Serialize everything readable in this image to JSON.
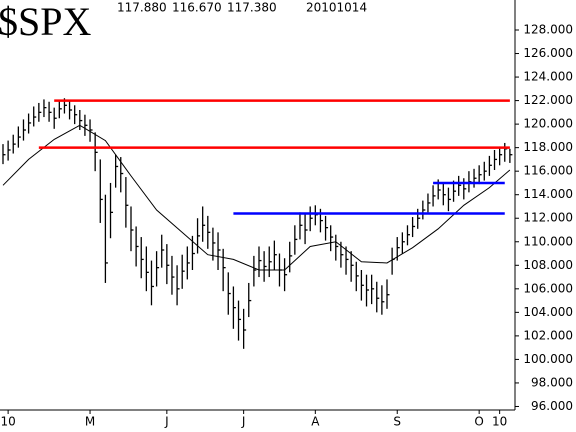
{
  "chart_data": {
    "type": "ohlc",
    "title": "$SPX",
    "header_values": [
      "117.880",
      "116.670",
      "117.380"
    ],
    "date": "20101014",
    "categories": [
      null,
      "10",
      null,
      null,
      null,
      null,
      null,
      null,
      null,
      null,
      null,
      null,
      null,
      null,
      null,
      null,
      null,
      "M",
      null,
      null,
      null,
      null,
      null,
      null,
      null,
      null,
      null,
      null,
      null,
      null,
      null,
      null,
      "J",
      null,
      null,
      null,
      null,
      null,
      null,
      null,
      null,
      null,
      null,
      null,
      null,
      null,
      null,
      "J",
      null,
      null,
      null,
      null,
      null,
      null,
      null,
      null,
      null,
      null,
      null,
      null,
      null,
      "A",
      null,
      null,
      null,
      null,
      null,
      null,
      null,
      null,
      null,
      null,
      null,
      null,
      null,
      null,
      null,
      "S",
      null,
      null,
      null,
      null,
      null,
      null,
      null,
      null,
      null,
      null,
      null,
      null,
      null,
      null,
      null,
      "O",
      null,
      null,
      null,
      "10",
      null,
      null
    ],
    "high": [
      118.3,
      118.6,
      119.1,
      119.8,
      120.4,
      120.9,
      121.5,
      121.8,
      122.1,
      121.9,
      121.4,
      122.0,
      122.2,
      122.0,
      121.6,
      121.2,
      120.8,
      120.4,
      119.3,
      117.0,
      114.0,
      115.0,
      117.4,
      117.2,
      115.5,
      113.0,
      111.3,
      110.4,
      109.6,
      108.4,
      109.2,
      110.6,
      109.8,
      108.8,
      108.0,
      108.9,
      109.6,
      110.5,
      112.0,
      113.0,
      112.2,
      111.2,
      110.8,
      109.4,
      107.4,
      106.2,
      105.0,
      104.3,
      106.5,
      108.8,
      109.6,
      109.2,
      109.6,
      110.1,
      109.0,
      108.6,
      110.0,
      111.4,
      112.5,
      112.4,
      113.0,
      113.1,
      112.8,
      112.2,
      111.4,
      110.6,
      110.0,
      109.6,
      109.2,
      108.3,
      107.6,
      107.2,
      107.2,
      106.6,
      106.3,
      106.8,
      109.5,
      110.4,
      110.8,
      111.4,
      112.1,
      112.8,
      113.5,
      114.1,
      114.8,
      115.3,
      115.0,
      114.6,
      115.2,
      115.6,
      115.4,
      116.0,
      116.2,
      116.5,
      116.8,
      117.3,
      117.8,
      118.1,
      118.4,
      117.9
    ],
    "low": [
      116.6,
      116.9,
      117.5,
      118.0,
      118.6,
      119.2,
      119.8,
      120.2,
      120.6,
      120.2,
      119.6,
      120.5,
      120.9,
      120.4,
      120.0,
      119.5,
      119.0,
      118.5,
      116.0,
      111.6,
      106.5,
      110.3,
      114.6,
      114.2,
      111.2,
      109.2,
      107.9,
      106.9,
      105.8,
      104.6,
      106.2,
      107.8,
      106.4,
      105.5,
      104.6,
      106.0,
      106.8,
      107.6,
      109.0,
      110.0,
      109.4,
      108.4,
      107.6,
      105.8,
      103.8,
      102.6,
      101.6,
      100.9,
      103.6,
      106.2,
      107.0,
      106.6,
      107.0,
      107.6,
      106.2,
      105.8,
      107.4,
      108.9,
      110.2,
      109.8,
      110.9,
      111.4,
      110.8,
      110.1,
      109.2,
      108.4,
      107.8,
      107.2,
      106.6,
      105.8,
      105.0,
      104.5,
      104.7,
      104.0,
      103.8,
      104.3,
      107.2,
      108.4,
      109.0,
      109.7,
      110.4,
      111.1,
      111.9,
      112.5,
      113.0,
      113.6,
      113.1,
      112.6,
      113.4,
      113.9,
      113.6,
      114.2,
      114.6,
      114.9,
      115.2,
      115.6,
      116.1,
      116.5,
      116.8,
      116.7
    ],
    "close": [
      117.4,
      117.8,
      118.3,
      118.9,
      119.5,
      120.1,
      120.6,
      121.0,
      121.4,
      121.0,
      120.5,
      121.3,
      121.6,
      121.2,
      120.8,
      120.3,
      119.9,
      119.5,
      117.6,
      113.6,
      108.2,
      112.5,
      116.4,
      115.8,
      113.1,
      111.0,
      109.6,
      108.5,
      107.4,
      106.2,
      107.8,
      109.3,
      108.0,
      107.0,
      106.0,
      107.5,
      108.2,
      109.0,
      110.5,
      111.4,
      110.8,
      109.9,
      109.3,
      107.8,
      105.6,
      104.4,
      103.4,
      102.5,
      105.0,
      107.6,
      108.4,
      107.9,
      108.3,
      108.9,
      107.6,
      107.2,
      108.8,
      110.2,
      111.4,
      111.0,
      112.0,
      112.3,
      111.8,
      111.2,
      110.4,
      109.6,
      108.9,
      108.5,
      108.0,
      107.1,
      106.3,
      105.9,
      106.0,
      105.2,
      104.9,
      105.5,
      108.5,
      109.5,
      110.0,
      110.6,
      111.3,
      112.0,
      112.7,
      113.3,
      113.9,
      114.4,
      114.0,
      113.6,
      114.3,
      114.8,
      114.5,
      115.1,
      115.4,
      115.7,
      116.0,
      116.5,
      117.0,
      117.4,
      117.9,
      117.4
    ],
    "color": "#000000",
    "moving_average": {
      "color": "#000000",
      "x": [
        0,
        5,
        10,
        15,
        20,
        25,
        30,
        35,
        40,
        45,
        50,
        55,
        60,
        65,
        70,
        75,
        80,
        85,
        90,
        95,
        99
      ],
      "values": [
        114.8,
        117.0,
        118.7,
        119.9,
        118.6,
        115.6,
        112.7,
        110.8,
        108.9,
        108.5,
        107.6,
        107.6,
        109.6,
        110.0,
        108.3,
        108.2,
        109.5,
        111.1,
        113.1,
        114.6,
        116.1
      ]
    },
    "levels": [
      {
        "value": 122,
        "x": [
          10,
          99
        ],
        "color": "#ff0000"
      },
      {
        "value": 118,
        "x": [
          7,
          99
        ],
        "color": "#ff0000"
      },
      {
        "value": 115,
        "x": [
          84,
          98
        ],
        "color": "#0000ff"
      },
      {
        "value": 112.4,
        "x": [
          45,
          98
        ],
        "color": "#0000ff"
      }
    ],
    "ylim": [
      95.7,
      129.7
    ],
    "yticks": [
      {
        "value": 96,
        "label": "96.000"
      },
      {
        "value": 98,
        "label": "98.000"
      },
      {
        "value": 100,
        "label": "100.000"
      },
      {
        "value": 102,
        "label": "102.000"
      },
      {
        "value": 104,
        "label": "104.000"
      },
      {
        "value": 106,
        "label": "106.000"
      },
      {
        "value": 108,
        "label": "108.000"
      },
      {
        "value": 110,
        "label": "110.000"
      },
      {
        "value": 112,
        "label": "112.000"
      },
      {
        "value": 114,
        "label": "114.000"
      },
      {
        "value": 116,
        "label": "116.000"
      },
      {
        "value": 118,
        "label": "118.000"
      },
      {
        "value": 120,
        "label": "120.000"
      },
      {
        "value": 122,
        "label": "122.000"
      },
      {
        "value": 124,
        "label": "124.000"
      },
      {
        "value": 126,
        "label": "126.000"
      },
      {
        "value": 128,
        "label": "128.000"
      }
    ]
  }
}
